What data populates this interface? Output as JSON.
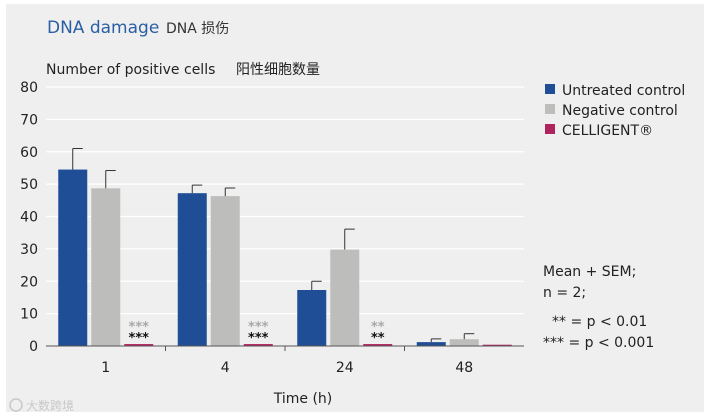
{
  "figure": {
    "title": "DNA damage",
    "title_cn": "DNA 损伤",
    "subtitle": "Number of positive cells",
    "subtitle_cn": "阳性细胞数量",
    "notes": [
      "Mean + SEM;",
      "n = 2;",
      "** = p < 0.01",
      "*** = p < 0.001"
    ],
    "watermark": "大数跨境"
  },
  "chart_data": {
    "type": "bar",
    "categories": [
      "1",
      "4",
      "24",
      "48"
    ],
    "xlabel": "Time (h)",
    "ylabel": "",
    "ylim": [
      0,
      80
    ],
    "yticks": [
      0,
      10,
      20,
      30,
      40,
      50,
      60,
      70,
      80
    ],
    "grid": true,
    "legend_position": "top-right",
    "series": [
      {
        "name": "Untreated control",
        "color": "#1f4e96",
        "values": [
          54.5,
          47.2,
          17.3,
          1.2
        ],
        "errors": [
          6.5,
          2.5,
          2.7,
          1.0
        ]
      },
      {
        "name": "Negative control",
        "color": "#bdbdbb",
        "values": [
          48.7,
          46.3,
          29.8,
          2.1
        ],
        "errors": [
          5.5,
          2.5,
          6.3,
          1.7
        ]
      },
      {
        "name": "CELLIGENT®",
        "color": "#b0245e",
        "values": [
          0.6,
          0.6,
          0.6,
          0.4
        ],
        "errors": [
          0,
          0,
          0,
          0
        ]
      }
    ],
    "annotations": [
      {
        "category": "1",
        "vs_negative": "***",
        "vs_untreated": "***"
      },
      {
        "category": "4",
        "vs_negative": "***",
        "vs_untreated": "***"
      },
      {
        "category": "24",
        "vs_negative": "**",
        "vs_untreated": "**"
      }
    ]
  }
}
